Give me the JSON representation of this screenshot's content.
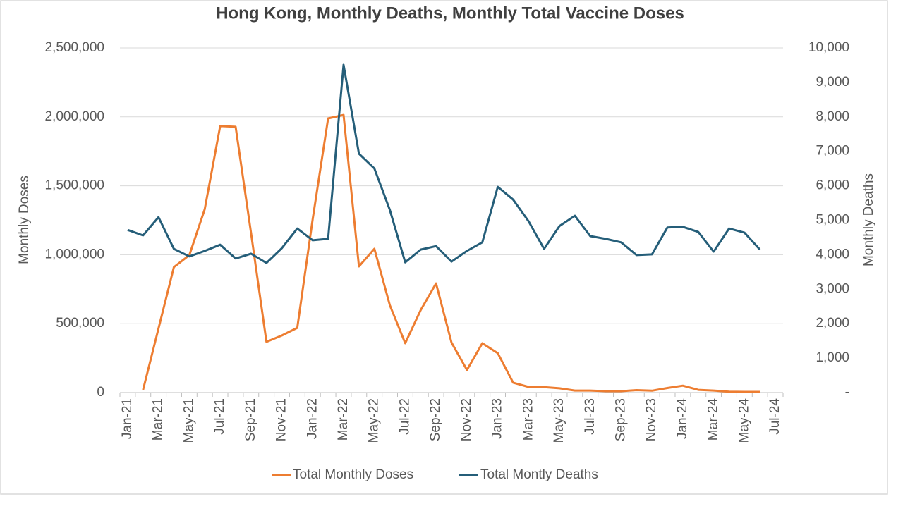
{
  "chart_data": {
    "type": "line",
    "title": "Hong Kong, Monthly Deaths, Monthly Total Vaccine Doses",
    "ylabel": "Monthly Doses",
    "y2label": "Monthly Deaths",
    "categories": [
      "Jan-21",
      null,
      "Mar-21",
      null,
      "May-21",
      null,
      "Jul-21",
      null,
      "Sep-21",
      null,
      "Nov-21",
      null,
      "Jan-22",
      null,
      "Mar-22",
      null,
      "May-22",
      null,
      "Jul-22",
      null,
      "Sep-22",
      null,
      "Nov-22",
      null,
      "Jan-23",
      null,
      "Mar-23",
      null,
      "May-23",
      null,
      "Jul-23",
      null,
      "Sep-23",
      null,
      "Nov-23",
      null,
      "Jan-24",
      null,
      "Mar-24",
      null,
      "May-24",
      null,
      "Jul-24"
    ],
    "series": [
      {
        "name": "Total Monthly Doses",
        "color": "#ed7d31",
        "values": [
          null,
          20000,
          465000,
          910000,
          997000,
          1330000,
          1933000,
          1928000,
          1160000,
          368000,
          414000,
          470000,
          1260000,
          1989000,
          2014000,
          915000,
          1043000,
          634000,
          358000,
          598000,
          792000,
          363000,
          164000,
          358000,
          286000,
          72000,
          41000,
          40000,
          31000,
          15000,
          15000,
          10000,
          10000,
          18000,
          14000,
          33000,
          50000,
          20000,
          15000,
          6000,
          5000,
          5000,
          null
        ]
      },
      {
        "name": "Total Montly Deaths",
        "color": "#255e79",
        "axis": "y2",
        "values": [
          4720,
          4560,
          5090,
          4170,
          3950,
          4110,
          4290,
          3890,
          4030,
          3760,
          4190,
          4760,
          4420,
          4460,
          9510,
          6930,
          6500,
          5300,
          3780,
          4150,
          4250,
          3800,
          4110,
          4360,
          5970,
          5600,
          4970,
          4170,
          4830,
          5130,
          4540,
          4460,
          4360,
          3990,
          4010,
          4790,
          4810,
          4660,
          4090,
          4760,
          4640,
          4150,
          null
        ]
      }
    ],
    "ylim": [
      0,
      2500000
    ],
    "yticks": [
      {
        "value": 0,
        "label": "0"
      },
      {
        "value": 500000,
        "label": "500,000"
      },
      {
        "value": 1000000,
        "label": "1,000,000"
      },
      {
        "value": 1500000,
        "label": "1,500,000"
      },
      {
        "value": 2000000,
        "label": "2,000,000"
      },
      {
        "value": 2500000,
        "label": "2,500,000"
      }
    ],
    "y2lim": [
      0,
      10000
    ],
    "y2ticks": [
      {
        "value": 0,
        "label": "-"
      },
      {
        "value": 1000,
        "label": "1,000"
      },
      {
        "value": 2000,
        "label": "2,000"
      },
      {
        "value": 3000,
        "label": "3,000"
      },
      {
        "value": 4000,
        "label": "4,000"
      },
      {
        "value": 5000,
        "label": "5,000"
      },
      {
        "value": 6000,
        "label": "6,000"
      },
      {
        "value": 7000,
        "label": "7,000"
      },
      {
        "value": 8000,
        "label": "8,000"
      },
      {
        "value": 9000,
        "label": "9,000"
      },
      {
        "value": 10000,
        "label": "10,000"
      }
    ],
    "grid": true,
    "legend": "bottom"
  }
}
